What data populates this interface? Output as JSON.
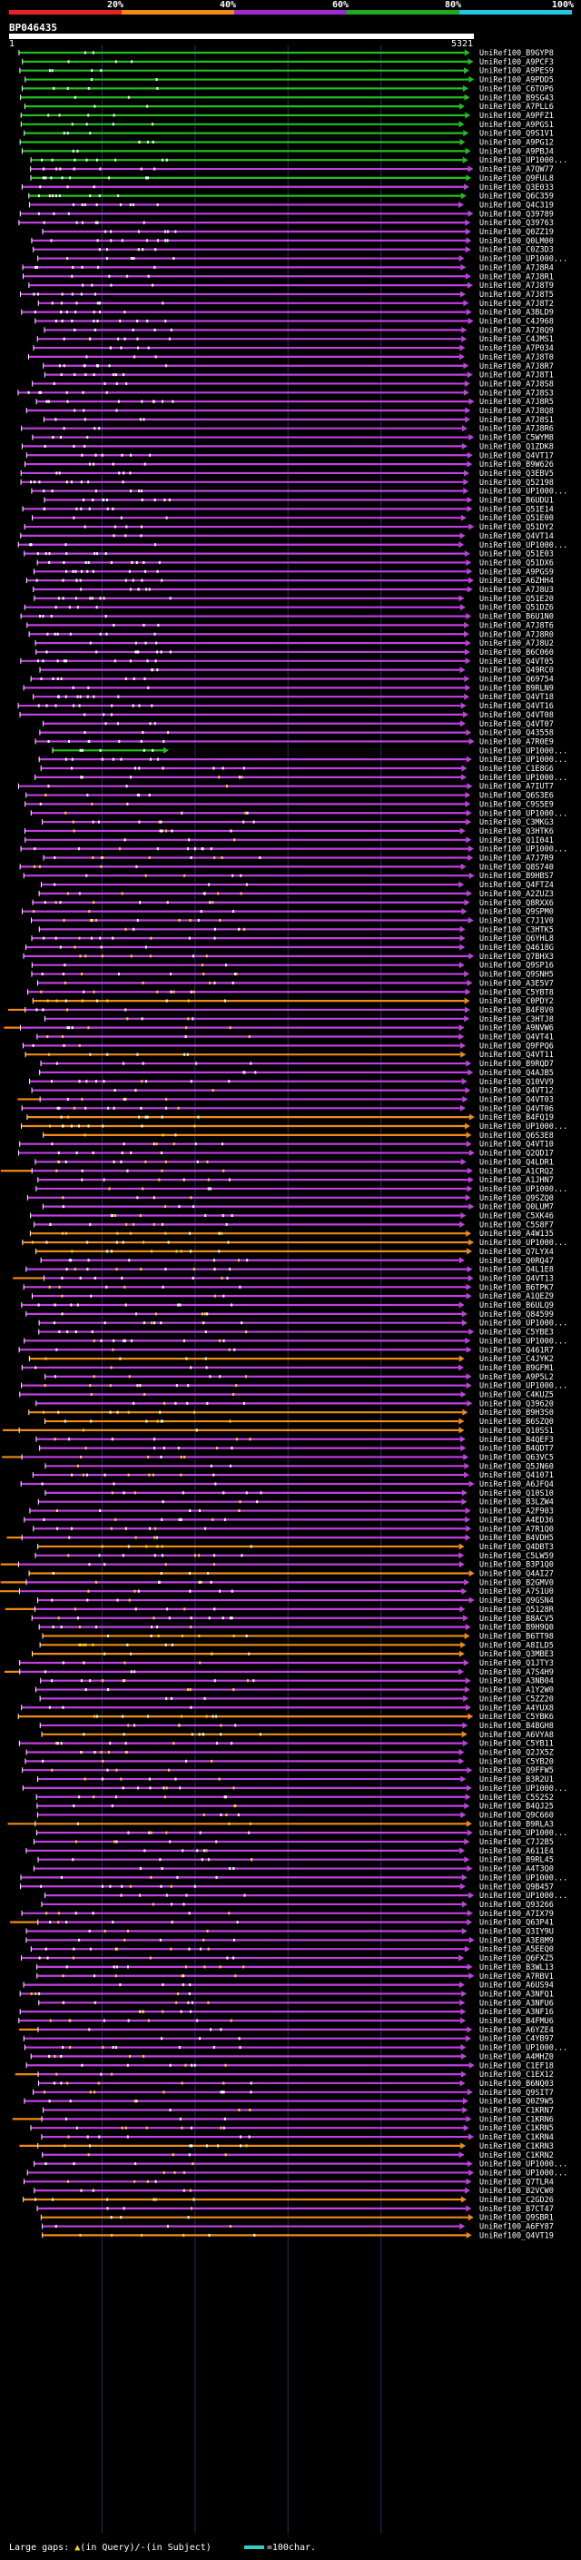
{
  "legend": {
    "segments": [
      {
        "label": "20%",
        "color": "#e8202a"
      },
      {
        "label": "40%",
        "color": "#f08a1a"
      },
      {
        "label": "60%",
        "color": "#a02ad0"
      },
      {
        "label": "80%",
        "color": "#1faa1f"
      },
      {
        "label": "100%",
        "color": "#22c8e0"
      }
    ]
  },
  "query": {
    "name": "BP046435",
    "start": "1",
    "end": "5321"
  },
  "colors": {
    "high": "#22c01e",
    "mid": "#c040e0",
    "low": "#f08a1a",
    "gap": "#ffffff",
    "tick": "#ffffff",
    "grid": "#2a2a6a",
    "ins": "#ffd21e"
  },
  "hits": [
    "UniRef100_B9GYP8",
    "UniRef100_A9PCF3",
    "UniRef100_A9PES9",
    "UniRef100_A9PDD5",
    "UniRef100_C6TOP6",
    "UniRef100_B9SG43",
    "UniRef100_A7PLL6",
    "UniRef100_A9PFZ1",
    "UniRef100_A9PGS1",
    "UniRef100_Q9S1V1",
    "UniRef100_A9PG12",
    "UniRef100_A9PBJ4",
    "UniRef100_UP1000...",
    "UniRef100_A7QW77",
    "UniRef100_Q9FUL8",
    "UniRef100_Q3E033",
    "UniRef100_Q6C359",
    "UniRef100_Q4C319",
    "UniRef100_Q39789",
    "UniRef100_Q39763",
    "UniRef100_Q0ZZ19",
    "UniRef100_Q0LM00",
    "UniRef100_C0Z3D3",
    "UniRef100_UP1000...",
    "UniRef100_A7J8R4",
    "UniRef100_A7J8R1",
    "UniRef100_A7J8T9",
    "UniRef100_A7J8T5",
    "UniRef100_A7J8T2",
    "UniRef100_A3BLD9",
    "UniRef100_C4J968",
    "UniRef100_A7J8Q9",
    "UniRef100_C4JMS1",
    "UniRef100_A7P034",
    "UniRef100_A7J8T0",
    "UniRef100_A7J8R7",
    "UniRef100_A7J8T1",
    "UniRef100_A7J8S8",
    "UniRef100_A7J8S3",
    "UniRef100_A7J8R5",
    "UniRef100_A7J8Q8",
    "UniRef100_A7J8S1",
    "UniRef100_A7J8R6",
    "UniRef100_C5WYM8",
    "UniRef100_Q1ZDK8",
    "UniRef100_Q4VT17",
    "UniRef100_B9W626",
    "UniRef100_Q3EBV5",
    "UniRef100_Q52198",
    "UniRef100_UP1000...",
    "UniRef100_B6UDU1",
    "UniRef100_Q51E14",
    "UniRef100_Q51E00",
    "UniRef100_Q51DY2",
    "UniRef100_Q4VT14",
    "UniRef100_UP1000...",
    "UniRef100_Q51E03",
    "UniRef100_Q51DX6",
    "UniRef100_A9PGS9",
    "UniRef100_A6ZHH4",
    "UniRef100_A7J8U3",
    "UniRef100_Q51E20",
    "UniRef100_Q51DZ6",
    "UniRef100_B6U1N0",
    "UniRef100_A7J8T6",
    "UniRef100_A7J8R0",
    "UniRef100_A7J8U2",
    "UniRef100_B6C060",
    "UniRef100_Q4VT05",
    "UniRef100_Q49RC0",
    "UniRef100_Q69754",
    "UniRef100_B9RLN9",
    "UniRef100_Q4VT18",
    "UniRef100_Q4VT16",
    "UniRef100_Q4VT08",
    "UniRef100_Q4VT07",
    "UniRef100_Q43558",
    "UniRef100_A7R0E9",
    "UniRef100_UP1000...",
    "UniRef100_UP1000...",
    "UniRef100_C1E8G6",
    "UniRef100_UP1000...",
    "UniRef100_A7IUT7",
    "UniRef100_Q6S3E6",
    "UniRef100_C9S5E9",
    "UniRef100_UP1000...",
    "UniRef100_C3MKG3",
    "UniRef100_Q3HTK6",
    "UniRef100_Q1I041",
    "UniRef100_UP1000...",
    "UniRef100_A7J7R9",
    "UniRef100_Q8S740",
    "UniRef100_B9HBS7",
    "UniRef100_Q4FTZ4",
    "UniRef100_A2ZUZ3",
    "UniRef100_Q8RXX6",
    "UniRef100_Q9SPM0",
    "UniRef100_C7J1V0",
    "UniRef100_C3HTK5",
    "UniRef100_Q6YHL8",
    "UniRef100_Q4618G",
    "UniRef100_Q7BHX3",
    "UniRef100_Q9SP16",
    "UniRef100_Q9SNH5",
    "UniRef100_A3E5V7",
    "UniRef100_C5YBT8",
    "UniRef100_C0PDY2",
    "UniRef100_B4F8V0",
    "UniRef100_C3HTJ8",
    "UniRef100_A9NVW6",
    "UniRef100_Q4VT41",
    "UniRef100_Q9FPQ6",
    "UniRef100_Q4VT11",
    "UniRef100_B9RQD7",
    "UniRef100_Q4AJB5",
    "UniRef100_Q10VV9",
    "UniRef100_Q4VT12",
    "UniRef100_Q4VT03",
    "UniRef100_Q4VT06",
    "UniRef100_B4FQ19",
    "UniRef100_UP1000...",
    "UniRef100_Q6S3E8",
    "UniRef100_Q4VT10",
    "UniRef100_Q2QD17",
    "UniRef100_Q4LDR1",
    "UniRef100_A1CRQ2",
    "UniRef100_A1JHN7",
    "UniRef100_UP1000...",
    "UniRef100_Q9SZQ0",
    "UniRef100_Q0LUM7",
    "UniRef100_C5XK46",
    "UniRef100_C5S8F7",
    "UniRef100_A4W135",
    "UniRef100_UP1000...",
    "UniRef100_Q7LYX4",
    "UniRef100_Q0RQ47",
    "UniRef100_Q4L1E8",
    "UniRef100_Q4VT13",
    "UniRef100_B6TPK7",
    "UniRef100_A1QEZ9",
    "UniRef100_B6ULQ9",
    "UniRef100_Q84599",
    "UniRef100_UP1000...",
    "UniRef100_C5YBE3",
    "UniRef100_UP1000...",
    "UniRef100_Q461R7",
    "UniRef100_C4JYK2",
    "UniRef100_B9GFM1",
    "UniRef100_A9P5L2",
    "UniRef100_UP1000...",
    "UniRef100_C4KUZ5",
    "UniRef100_Q39620",
    "UniRef100_B9H3S0",
    "UniRef100_B6SZQ0",
    "UniRef100_Q10SS1",
    "UniRef100_B4QEF3",
    "UniRef100_B4QDT7",
    "UniRef100_Q63VC5",
    "UniRef100_Q5JN60",
    "UniRef100_Q41071",
    "UniRef100_A6JFQ4",
    "UniRef100_Q10S10",
    "UniRef100_B3LZW4",
    "UniRef100_A2F903",
    "UniRef100_A4ED36",
    "UniRef100_A7R1Q0",
    "UniRef100_B4VDH5",
    "UniRef100_Q4DBT3",
    "UniRef100_C5LW59",
    "UniRef100_B3P1Q0",
    "UniRef100_Q4AI27",
    "UniRef100_B2GMV0",
    "UniRef100_A7S1U0",
    "UniRef100_Q9GSN4",
    "UniRef100_Q5128R",
    "UniRef100_B8ACV5",
    "UniRef100_B9H9Q0",
    "UniRef100_B6TT98",
    "UniRef100_A8ILD5",
    "UniRef100_Q3MBE3",
    "UniRef100_Q1JTY3",
    "UniRef100_A7S4H9",
    "UniRef100_A3NB04",
    "UniRef100_A1Y2W0",
    "UniRef100_C5ZZ20",
    "UniRef100_A4YUX8",
    "UniRef100_C5YBK6",
    "UniRef100_B4BGH8",
    "UniRef100_A6VYA8",
    "UniRef100_C5YB11",
    "UniRef100_Q2JX5Z",
    "UniRef100_C5YB20",
    "UniRef100_Q9FFW5",
    "UniRef100_B3R2U1",
    "UniRef100_UP1000...",
    "UniRef100_C5S2S2",
    "UniRef100_B4QJ25",
    "UniRef100_Q9C660",
    "UniRef100_B9RLA3",
    "UniRef100_UP1000...",
    "UniRef100_C7J2B5",
    "UniRef100_A611E4",
    "UniRef100_B9RL45",
    "UniRef100_A4T3Q0",
    "UniRef100_UP1000...",
    "UniRef100_Q9B457",
    "UniRef100_UP1000...",
    "UniRef100_Q93266",
    "UniRef100_A7IX79",
    "UniRef100_Q63P41",
    "UniRef100_Q3IY9U",
    "UniRef100_A3E8M9",
    "UniRef100_A5EEQ0",
    "UniRef100_Q6FXZ5",
    "UniRef100_B3WL13",
    "UniRef100_A7RBV1",
    "UniRef100_A6US94",
    "UniRef100_A3NFQ1",
    "UniRef100_A3NFU6",
    "UniRef100_A3NF16",
    "UniRef100_B4FMU6",
    "UniRef100_A6YZE4",
    "UniRef100_C4YB97",
    "UniRef100_UP1000...",
    "UniRef100_A4MHZ0",
    "UniRef100_C1EF18",
    "UniRef100_C1EX12",
    "UniRef100_B6NQ03",
    "UniRef100_Q9SIT7",
    "UniRef100_Q0Z9W5",
    "UniRef100_C1KRN7",
    "UniRef100_C1KRN6",
    "UniRef100_C1KRN5",
    "UniRef100_C1KRN4",
    "UniRef100_C1KRN3",
    "UniRef100_C1KRN2",
    "UniRef100_UP1000...",
    "UniRef100_UP1000...",
    "UniRef100_Q7TLR4",
    "UniRef100_B2VCW0",
    "UniRef100_C2GD26",
    "UniRef100_B7CT47",
    "UniRef100_Q9SBR1",
    "UniRef100_A6FY87",
    "UniRef100_Q4VT19"
  ],
  "footer": {
    "large_gaps_label": "Large gaps:",
    "in_query_label": "(in Query)/",
    "in_subject_label": "(in Subject)",
    "scale_label": "=100char."
  }
}
